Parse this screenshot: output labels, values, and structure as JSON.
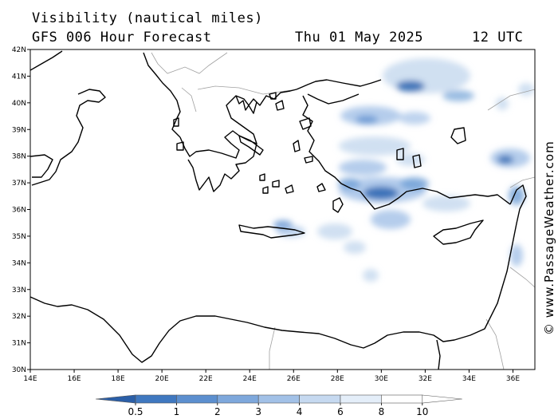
{
  "header": {
    "title": "Visibility (nautical miles)",
    "subtitle": "GFS 006 Hour Forecast",
    "date": "Thu 01 May 2025",
    "time": "12 UTC"
  },
  "credit": "© www.PassageWeather.com",
  "map": {
    "lon_min": 14,
    "lon_max": 37,
    "lat_min": 30,
    "lat_max": 42,
    "lon_ticks": [
      "14E",
      "16E",
      "18E",
      "20E",
      "22E",
      "24E",
      "26E",
      "28E",
      "30E",
      "32E",
      "34E",
      "36E"
    ],
    "lat_ticks": [
      "42N",
      "41N",
      "40N",
      "39N",
      "38N",
      "37N",
      "36N",
      "35N",
      "34N",
      "33N",
      "32N",
      "31N",
      "30N"
    ],
    "colors": {
      "land_line": "#000000",
      "border_line": "#a0a0a0",
      "fog_dark": "#2f69b3",
      "fog_mid": "#6e9fd6",
      "fog_light": "#c4d8ee"
    }
  },
  "colorbar": {
    "labels": [
      "0.5",
      "1",
      "2",
      "3",
      "4",
      "6",
      "8",
      "10"
    ],
    "colors": [
      "#2b5fa8",
      "#3f78c0",
      "#5c8fcf",
      "#7ea8dc",
      "#a2c1e7",
      "#c6d9f0",
      "#e4eef9",
      "#ffffff"
    ]
  }
}
